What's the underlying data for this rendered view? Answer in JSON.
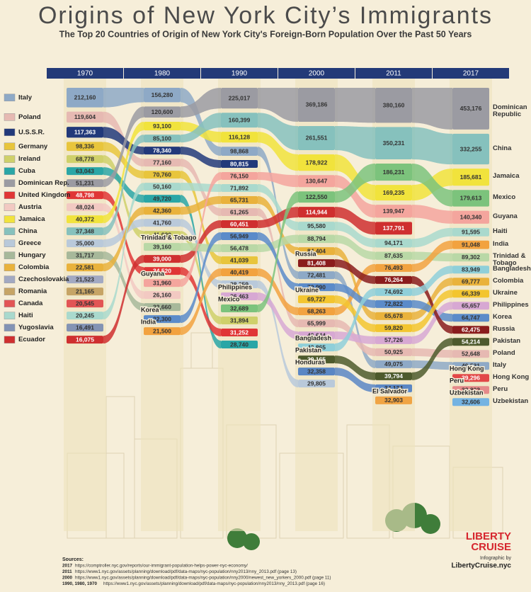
{
  "chart_data": {
    "type": "bump",
    "title": "Origins of New York City’s Immigrants",
    "subtitle": "The Top 20 Countries of Origin of New York City's Foreign-Born Population Over the Past 50 Years",
    "categories": [
      "1970",
      "1980",
      "1990",
      "2000",
      "2011",
      "2017"
    ],
    "series": [
      {
        "name": "Italy",
        "color": "#8ea9c6",
        "values": [
          212160,
          156280,
          98868,
          72481,
          49075,
          49531
        ],
        "value_labels": [
          "212,160",
          "156,280",
          "98,868",
          "72,481",
          "49,075",
          "49,531"
        ]
      },
      {
        "name": "Poland",
        "color": "#e6b9b2",
        "values": [
          119604,
          77160,
          61265,
          65999,
          50925,
          52648
        ],
        "value_labels": [
          "119,604",
          "77,160",
          "61,265",
          "65,999",
          "50,925",
          "52,648"
        ]
      },
      {
        "name": "U.S.S.R.",
        "color": "#22397a",
        "values": [
          117363,
          78340,
          80815,
          null,
          null,
          null
        ],
        "value_labels": [
          "117,363",
          "78,340",
          "80,815",
          null,
          null,
          null
        ]
      },
      {
        "name": "Germany",
        "color": "#e8c53c",
        "values": [
          98336,
          70760,
          41039,
          null,
          null,
          null
        ],
        "value_labels": [
          "98,336",
          "70,760",
          "41,039",
          null,
          null,
          null
        ]
      },
      {
        "name": "Ireland",
        "color": "#cfd06a",
        "values": [
          68778,
          41020,
          31894,
          null,
          null,
          null
        ],
        "value_labels": [
          "68,778",
          "41,020",
          "31,894",
          null,
          null,
          null
        ]
      },
      {
        "name": "Cuba",
        "color": "#2aa6a6",
        "values": [
          63043,
          49720,
          28740,
          null,
          null,
          null
        ],
        "value_labels": [
          "63,043",
          "49,720",
          "28,740",
          null,
          null,
          null
        ]
      },
      {
        "name": "Dominican Rep.",
        "end_name": "Dominican Republic",
        "color": "#9b9ba2",
        "values": [
          51231,
          120600,
          225017,
          369186,
          380160,
          453176
        ],
        "value_labels": [
          "51,231",
          "120,600",
          "225,017",
          "369,186",
          "380,160",
          "453,176"
        ]
      },
      {
        "name": "United Kingdom",
        "color": "#e03636",
        "values": [
          48798,
          34520,
          31252,
          null,
          null,
          null
        ],
        "value_labels": [
          "48,798",
          "34,520",
          "31,252",
          null,
          null,
          null
        ]
      },
      {
        "name": "Austria",
        "color": "#f2c9c2",
        "values": [
          48024,
          26160,
          null,
          null,
          null,
          null
        ],
        "value_labels": [
          "48,024",
          "26,160",
          null,
          null,
          null,
          null
        ]
      },
      {
        "name": "Jamaica",
        "color": "#f1e33c",
        "values": [
          40372,
          93100,
          116128,
          178922,
          169235,
          185681
        ],
        "value_labels": [
          "40,372",
          "93,100",
          "116,128",
          "178,922",
          "169,235",
          "185,681"
        ]
      },
      {
        "name": "China",
        "color": "#86c1bd",
        "values": [
          37348,
          85100,
          160399,
          261551,
          350231,
          332255
        ],
        "value_labels": [
          "37,348",
          "85,100",
          "160,399",
          "261,551",
          "350,231",
          "332,255"
        ]
      },
      {
        "name": "Greece",
        "color": "#b9c9da",
        "values": [
          35000,
          41760,
          38259,
          29805,
          null,
          null
        ],
        "value_labels": [
          "35,000",
          "41,760",
          "38,259",
          "29,805",
          null,
          null
        ]
      },
      {
        "name": "Hungary",
        "color": "#a7b89a",
        "values": [
          31717,
          22660,
          null,
          null,
          null,
          null
        ],
        "value_labels": [
          "31,717",
          "22,660",
          null,
          null,
          null,
          null
        ]
      },
      {
        "name": "Colombia",
        "color": "#e9b23c",
        "values": [
          22581,
          42360,
          65731,
          84404,
          65678,
          69777
        ],
        "value_labels": [
          "22,581",
          "42,360",
          "65,731",
          "84,404",
          "65,678",
          "69,777"
        ]
      },
      {
        "name": "Czechoslovakia",
        "color": "#a2a9c2",
        "values": [
          21523,
          null,
          null,
          null,
          null,
          null
        ],
        "value_labels": [
          "21,523",
          null,
          null,
          null,
          null,
          null
        ]
      },
      {
        "name": "Romania",
        "color": "#c6a466",
        "values": [
          21165,
          null,
          null,
          null,
          null,
          null
        ],
        "value_labels": [
          "21,165",
          null,
          null,
          null,
          null,
          null
        ]
      },
      {
        "name": "Canada",
        "color": "#e25555",
        "values": [
          20545,
          null,
          null,
          null,
          null,
          null
        ],
        "value_labels": [
          "20,545",
          null,
          null,
          null,
          null,
          null
        ]
      },
      {
        "name": "Haiti",
        "color": "#a9d9cd",
        "values": [
          20245,
          50160,
          71892,
          95580,
          94171,
          91595
        ],
        "value_labels": [
          "20,245",
          "50,160",
          "71,892",
          "95,580",
          "94,171",
          "91,595"
        ]
      },
      {
        "name": "Yugoslavia",
        "color": "#8393b4",
        "values": [
          16491,
          null,
          null,
          null,
          null,
          null
        ],
        "value_labels": [
          "16,491",
          null,
          null,
          null,
          null,
          null
        ]
      },
      {
        "name": "Ecuador",
        "color": "#cf2f2f",
        "values": [
          16075,
          39000,
          60451,
          114944,
          137791,
          null
        ],
        "value_labels": [
          "16,075",
          "39,000",
          "60,451",
          "114,944",
          "137,791",
          null
        ]
      },
      {
        "name": "Trinidad & Tobago",
        "color": "#b9d8a6",
        "values": [
          null,
          39160,
          56478,
          88794,
          87635,
          89302
        ],
        "value_labels": [
          null,
          "39,160",
          "56,478",
          "88,794",
          "87,635",
          "89,302"
        ]
      },
      {
        "name": "Guyana",
        "color": "#f4a59d",
        "values": [
          null,
          31960,
          76150,
          130647,
          139947,
          140340
        ],
        "value_labels": [
          null,
          "31,960",
          "76,150",
          "130,647",
          "139,947",
          "140,340"
        ]
      },
      {
        "name": "India",
        "color": "#f2a23f",
        "values": [
          null,
          21500,
          40419,
          68263,
          76493,
          91048
        ],
        "value_labels": [
          null,
          "21,500",
          "40,419",
          "68,263",
          "76,493",
          "91,048"
        ]
      },
      {
        "name": "Korea",
        "color": "#5b8bc9",
        "values": [
          null,
          22300,
          56949,
          70990,
          72822,
          64747
        ],
        "value_labels": [
          null,
          "22,300",
          "56,949",
          "70,990",
          "72,822",
          "64,747"
        ]
      },
      {
        "name": "Philippines",
        "color": "#d7a8d3",
        "values": [
          null,
          null,
          36463,
          49644,
          57726,
          65657
        ],
        "value_labels": [
          null,
          null,
          "36,463",
          "49,644",
          "57,726",
          "65,657"
        ]
      },
      {
        "name": "Mexico",
        "color": "#7cc37c",
        "values": [
          null,
          null,
          32689,
          122550,
          186231,
          179613
        ],
        "value_labels": [
          null,
          null,
          "32,689",
          "122,550",
          "186,231",
          "179,613"
        ]
      },
      {
        "name": "Russia",
        "color": "#8a1c1c",
        "values": [
          null,
          null,
          null,
          81408,
          76264,
          62475
        ],
        "value_labels": [
          null,
          null,
          null,
          "81,408",
          "76,264",
          "62,475"
        ]
      },
      {
        "name": "Ukraine",
        "color": "#f3c52f",
        "values": [
          null,
          null,
          null,
          69727,
          59820,
          66339
        ],
        "value_labels": [
          null,
          null,
          null,
          "69,727",
          "59,820",
          "66,339"
        ]
      },
      {
        "name": "Bangladesh",
        "color": "#8fcfd9",
        "values": [
          null,
          null,
          null,
          42865,
          74692,
          83949
        ],
        "value_labels": [
          null,
          null,
          null,
          "42,865",
          "74,692",
          "83,949"
        ]
      },
      {
        "name": "Pakistan",
        "color": "#4d5a2c",
        "values": [
          null,
          null,
          null,
          39165,
          39794,
          54214
        ],
        "value_labels": [
          null,
          null,
          null,
          "39,165",
          "39,794",
          "54,214"
        ]
      },
      {
        "name": "Honduras",
        "color": "#5a86c4",
        "values": [
          null,
          null,
          null,
          32358,
          34134,
          null
        ],
        "value_labels": [
          null,
          null,
          null,
          "32,358",
          "34,134",
          null
        ]
      },
      {
        "name": "El Salvador",
        "color": "#f0a444",
        "values": [
          null,
          null,
          null,
          null,
          32903,
          null
        ],
        "value_labels": [
          null,
          null,
          null,
          null,
          "32,903",
          null
        ]
      },
      {
        "name": "Hong Kong",
        "color": "#e24848",
        "values": [
          null,
          null,
          null,
          null,
          null,
          39296
        ],
        "value_labels": [
          null,
          null,
          null,
          null,
          null,
          "39,296"
        ]
      },
      {
        "name": "Peru",
        "color": "#e58a8a",
        "values": [
          null,
          null,
          null,
          null,
          null,
          32822
        ],
        "value_labels": [
          null,
          null,
          null,
          null,
          null,
          "32,822"
        ]
      },
      {
        "name": "Uzbekistan",
        "color": "#74b3e2",
        "values": [
          null,
          null,
          null,
          null,
          null,
          32606
        ],
        "value_labels": [
          null,
          null,
          null,
          null,
          null,
          "32,606"
        ]
      }
    ]
  },
  "footer": {
    "sources_title": "Sources:",
    "sources": [
      {
        "year": "2017",
        "url": "https://comptroller.nyc.gov/reports/our-immigrant-population-helps-power-nyc-economy/"
      },
      {
        "year": "2011",
        "url": "https://www1.nyc.gov/assets/planning/download/pdf/data-maps/nyc-population/nny2013/nny_2013.pdf (page 13)"
      },
      {
        "year": "2000",
        "url": "https://www1.nyc.gov/assets/planning/download/pdf/data-maps/nyc-population/nny2000/newest_new_yorkers_2000.pdf (page 11)"
      },
      {
        "year": "1990, 1980, 1970",
        "url": "https://www1.nyc.gov/assets/planning/download/pdf/data-maps/nyc-population/nny2013/nny_2013.pdf (page 16)"
      }
    ],
    "logo_1": "LIBERTY",
    "logo_2": "CRUISE",
    "credit": "Infographic by",
    "site": "LibertyCruise.nyc"
  }
}
